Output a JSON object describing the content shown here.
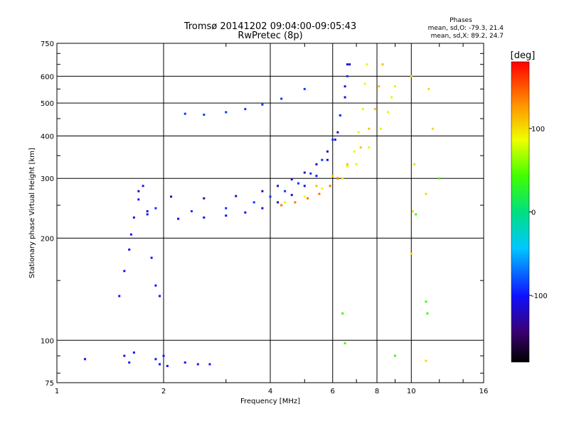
{
  "chart_data": {
    "type": "scatter",
    "title": "Tromsø 20141202 09:04:00-09:05:43",
    "subtitle": "RwPretec (8p)",
    "xlabel": "Frequency [MHz]",
    "ylabel": "Stationary phase Virtual Height [km]",
    "x_scale": "log",
    "y_scale": "log",
    "xlim": [
      1,
      16
    ],
    "ylim": [
      75,
      750
    ],
    "grid": true,
    "x_ticks": [
      1,
      2,
      4,
      6,
      8,
      10,
      16
    ],
    "y_ticks": [
      75,
      100,
      200,
      300,
      400,
      500,
      600,
      750
    ],
    "phases_info": {
      "title": "Phases",
      "line1": "mean, sd,O: -79.3, 21.4",
      "line2": "mean, sd,X: 89.2, 24.7"
    },
    "colorbar": {
      "label": "[deg]",
      "range": [
        -180,
        180
      ],
      "ticks": [
        100,
        0,
        -100
      ],
      "colormap": "rainbow"
    },
    "series": [
      {
        "trace": "lower-F-trace",
        "phase_deg": -110,
        "x": [
          1.8,
          2.2,
          2.6,
          3.0,
          3.4,
          3.8,
          4.2,
          4.6,
          5.0,
          5.4,
          5.8,
          6.1,
          6.3,
          6.5,
          6.6
        ],
        "y": [
          235,
          228,
          230,
          233,
          238,
          245,
          255,
          268,
          285,
          305,
          340,
          390,
          460,
          560,
          650
        ]
      },
      {
        "trace": "upper-F-trace",
        "phase_deg": -120,
        "x": [
          1.7,
          2.1,
          2.6,
          3.2,
          3.8,
          4.2,
          4.6,
          5.0,
          5.4,
          5.8,
          6.2,
          6.5,
          6.7
        ],
        "y": [
          275,
          265,
          262,
          266,
          275,
          285,
          298,
          312,
          330,
          360,
          410,
          520,
          650
        ]
      },
      {
        "trace": "middle-F-trace",
        "phase_deg": -90,
        "x": [
          1.9,
          2.4,
          3.0,
          3.6,
          4.0,
          4.4,
          4.8,
          5.2,
          5.6,
          6.0,
          6.3,
          6.6
        ],
        "y": [
          245,
          240,
          245,
          255,
          265,
          275,
          290,
          310,
          340,
          390,
          460,
          600
        ]
      },
      {
        "trace": "x-mode-trace",
        "phase_deg": 90,
        "x": [
          4.4,
          5.0,
          5.6,
          6.2,
          6.6,
          6.9,
          7.1,
          7.3,
          7.4,
          7.5
        ],
        "y": [
          255,
          265,
          280,
          300,
          325,
          360,
          410,
          480,
          570,
          650
        ]
      },
      {
        "trace": "x-mode-trace-upper",
        "phase_deg": 110,
        "x": [
          5.4,
          6.0,
          6.6,
          7.2,
          7.6,
          7.9,
          8.1,
          8.3
        ],
        "y": [
          285,
          305,
          330,
          370,
          420,
          480,
          560,
          650
        ]
      },
      {
        "trace": "x-mode-trace-high",
        "phase_deg": 80,
        "x": [
          6.4,
          7.0,
          7.6,
          8.2,
          8.6,
          8.8,
          9.0
        ],
        "y": [
          300,
          330,
          370,
          420,
          470,
          520,
          560
        ]
      },
      {
        "trace": "orange-lower-edge",
        "phase_deg": 140,
        "x": [
          4.3,
          4.7,
          5.1,
          5.5,
          5.9,
          6.2
        ],
        "y": [
          250,
          255,
          262,
          270,
          285,
          300
        ]
      },
      {
        "trace": "es-cusp",
        "phase_deg": -100,
        "x": [
          1.5,
          1.55,
          1.6,
          1.62,
          1.65,
          1.7,
          1.75,
          1.8,
          1.85,
          1.9,
          1.95
        ],
        "y": [
          135,
          160,
          185,
          205,
          230,
          260,
          285,
          240,
          175,
          145,
          135
        ]
      },
      {
        "trace": "high-echo-trace",
        "phase_deg": -90,
        "x": [
          2.3,
          2.6,
          3.0,
          3.4,
          3.8,
          4.3,
          5.0
        ],
        "y": [
          465,
          462,
          470,
          480,
          495,
          515,
          550
        ]
      },
      {
        "trace": "e-layer-echoes",
        "phase_deg": -100,
        "x": [
          1.2,
          1.55,
          1.6,
          1.65,
          1.9,
          1.95,
          2.0,
          2.05,
          2.3,
          2.5,
          2.7
        ],
        "y": [
          88,
          90,
          86,
          92,
          88,
          85,
          90,
          84,
          86,
          85,
          85
        ]
      },
      {
        "trace": "scattered-high-freq",
        "phase_deg": 100,
        "x": [
          10.0,
          10.2,
          11.0,
          11.2,
          11.5,
          11.0,
          10.1,
          10.0
        ],
        "y": [
          600,
          330,
          270,
          550,
          420,
          87,
          240,
          180
        ]
      },
      {
        "trace": "scattered-misc",
        "phase_deg": 40,
        "x": [
          6.4,
          6.5,
          9.0,
          10.3,
          11.0,
          11.1,
          12.0
        ],
        "y": [
          120,
          98,
          90,
          235,
          130,
          120,
          300
        ]
      }
    ]
  }
}
